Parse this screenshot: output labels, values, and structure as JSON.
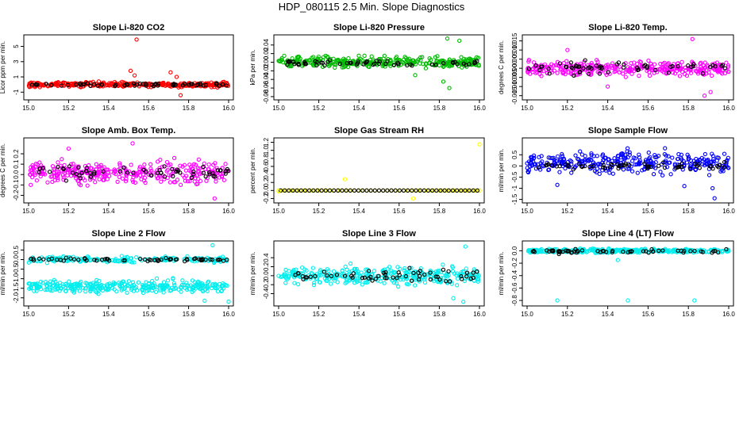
{
  "page": {
    "title": "HDP_080115  2.5 Min. Slope Diagnostics"
  },
  "chart_data": [
    {
      "type": "scatter",
      "title": "Slope Li-820 CO2",
      "ylabel": "Licor ppm per min.",
      "color": "#ff0000",
      "xlim": [
        15.0,
        16.0
      ],
      "ylim": [
        -1.7,
        6.2
      ],
      "xticks": [
        15.0,
        15.2,
        15.4,
        15.6,
        15.8,
        16.0
      ],
      "xtick_labels": [
        "15.0",
        "15.2",
        "15.4",
        "15.6",
        "15.8",
        "16.0"
      ],
      "yticks": [
        -1,
        1,
        3,
        5
      ],
      "ytick_labels": [
        "-1",
        "1",
        "3",
        "5"
      ],
      "main": {
        "center": 0.0,
        "spread": 0.3
      },
      "black": {
        "center": 0.0,
        "spread": 0.2
      },
      "outliers": [
        [
          15.54,
          5.9
        ],
        [
          15.51,
          1.8
        ],
        [
          15.53,
          1.2
        ],
        [
          15.71,
          1.6
        ],
        [
          15.74,
          1.0
        ],
        [
          15.76,
          -1.4
        ]
      ]
    },
    {
      "type": "scatter",
      "title": "Slope Li-820 Pressure",
      "ylabel": "kPa per min.",
      "color": "#00bb00",
      "xlim": [
        15.0,
        16.0
      ],
      "ylim": [
        -0.082,
        0.058
      ],
      "xticks": [
        15.0,
        15.2,
        15.4,
        15.6,
        15.8,
        16.0
      ],
      "xtick_labels": [
        "15.0",
        "15.2",
        "15.4",
        "15.6",
        "15.8",
        "16.0"
      ],
      "yticks": [
        -0.08,
        -0.06,
        -0.04,
        -0.02,
        0.0,
        0.02,
        0.04
      ],
      "ytick_labels": [
        "-0.08",
        "-0.06",
        "-0.04",
        "-0.02",
        "0.00",
        "0.02",
        "0.04"
      ],
      "main": {
        "center": 0.0,
        "spread": 0.012
      },
      "black": {
        "center": -0.002,
        "spread": 0.006
      },
      "outliers": [
        [
          15.84,
          0.055
        ],
        [
          15.9,
          0.05
        ],
        [
          15.85,
          -0.06
        ],
        [
          15.82,
          -0.045
        ],
        [
          15.68,
          -0.03
        ]
      ]
    },
    {
      "type": "scatter",
      "title": "Slope Li-820 Temp.",
      "ylabel": "degrees C per min.",
      "color": "#ff00ff",
      "xlim": [
        15.0,
        16.0
      ],
      "ylim": [
        -0.016,
        0.017
      ],
      "xticks": [
        15.0,
        15.2,
        15.4,
        15.6,
        15.8,
        16.0
      ],
      "xtick_labels": [
        "15.0",
        "15.2",
        "15.4",
        "15.6",
        "15.8",
        "16.0"
      ],
      "yticks": [
        -0.015,
        -0.01,
        -0.005,
        0.0,
        0.005,
        0.01,
        0.015
      ],
      "ytick_labels": [
        "-0.015",
        "-0.010",
        "-0.005",
        "0.000",
        "0.005",
        "0.010",
        "0.015"
      ],
      "main": {
        "center": 0.0,
        "spread": 0.004
      },
      "black": {
        "center": 0.0,
        "spread": 0.003
      },
      "outliers": [
        [
          15.82,
          0.016
        ],
        [
          15.91,
          -0.013
        ],
        [
          15.88,
          -0.015
        ],
        [
          15.4,
          -0.01
        ],
        [
          15.2,
          0.01
        ]
      ]
    },
    {
      "type": "scatter",
      "title": "Slope Amb. Box Temp.",
      "ylabel": "degrees C per min.",
      "color": "#ff00ff",
      "xlim": [
        15.0,
        16.0
      ],
      "ylim": [
        -0.25,
        0.33
      ],
      "xticks": [
        15.0,
        15.2,
        15.4,
        15.6,
        15.8,
        16.0
      ],
      "xtick_labels": [
        "15.0",
        "15.2",
        "15.4",
        "15.6",
        "15.8",
        "16.0"
      ],
      "yticks": [
        -0.2,
        -0.1,
        0.0,
        0.1,
        0.2
      ],
      "ytick_labels": [
        "-0.2",
        "-0.1",
        "0.0",
        "0.1",
        "0.2"
      ],
      "main": {
        "center": 0.02,
        "spread": 0.1
      },
      "black": {
        "center": 0.02,
        "spread": 0.06
      },
      "outliers": [
        [
          15.52,
          0.3
        ],
        [
          15.2,
          0.25
        ],
        [
          15.93,
          -0.23
        ]
      ]
    },
    {
      "type": "scatter",
      "title": "Slope Gas Stream RH",
      "ylabel": "percent per min.",
      "color": "#ffff00",
      "xlim": [
        15.0,
        16.0
      ],
      "ylim": [
        -0.25,
        1.25
      ],
      "xticks": [
        15.0,
        15.2,
        15.4,
        15.6,
        15.8,
        16.0
      ],
      "xtick_labels": [
        "15.0",
        "15.2",
        "15.4",
        "15.6",
        "15.8",
        "16.0"
      ],
      "yticks": [
        -0.2,
        0.0,
        0.2,
        0.4,
        0.6,
        0.8,
        1.0,
        1.2
      ],
      "ytick_labels": [
        "-0.2",
        "0.0",
        "0.2",
        "0.4",
        "0.6",
        "0.8",
        "1.0",
        "1.2"
      ],
      "main": {
        "center": 0.0,
        "spread": 0.0
      },
      "black": {
        "center": 0.0,
        "spread": 0.0
      },
      "outliers": [
        [
          16.0,
          1.15
        ],
        [
          15.33,
          0.28
        ],
        [
          15.67,
          -0.2
        ],
        [
          15.0,
          -0.02
        ]
      ]
    },
    {
      "type": "scatter",
      "title": "Slope Sample Flow",
      "ylabel": "ml/min per min.",
      "color": "#0000ff",
      "xlim": [
        15.0,
        16.0
      ],
      "ylim": [
        -1.55,
        1.15
      ],
      "xticks": [
        15.0,
        15.2,
        15.4,
        15.6,
        15.8,
        16.0
      ],
      "xtick_labels": [
        "15.0",
        "15.2",
        "15.4",
        "15.6",
        "15.8",
        "16.0"
      ],
      "yticks": [
        -1.5,
        -1.0,
        -0.5,
        0.0,
        0.5
      ],
      "ytick_labels": [
        "-1.5",
        "-1",
        "-0.5",
        "0",
        "0.5"
      ],
      "main": {
        "center": 0.15,
        "spread": 0.45
      },
      "black": {
        "center": 0.0,
        "spread": 0.15
      },
      "outliers": [
        [
          15.93,
          -1.45
        ],
        [
          15.78,
          -0.9
        ],
        [
          15.15,
          -0.85
        ],
        [
          15.92,
          -1.0
        ]
      ]
    },
    {
      "type": "scatter",
      "title": "Slope Line 2 Flow",
      "ylabel": "ml/min per min.",
      "color": "#00eeee",
      "xlim": [
        15.0,
        16.0
      ],
      "ylim": [
        -2.3,
        0.85
      ],
      "xticks": [
        15.0,
        15.2,
        15.4,
        15.6,
        15.8,
        16.0
      ],
      "xtick_labels": [
        "15.0",
        "15.2",
        "15.4",
        "15.6",
        "15.8",
        "16.0"
      ],
      "yticks": [
        -2.0,
        -1.5,
        -1.0,
        -0.5,
        0.0,
        0.5
      ],
      "ytick_labels": [
        "-2.0",
        "-1.5",
        "-1.0",
        "-0.5",
        "0.0",
        "0.5"
      ],
      "main": {
        "center": -1.4,
        "spread": 0.3
      },
      "upper": {
        "center": 0.0,
        "spread": 0.15
      },
      "black": {
        "center": 0.0,
        "spread": 0.08
      },
      "outliers": [
        [
          15.92,
          0.75
        ],
        [
          16.0,
          -2.2
        ],
        [
          15.88,
          -2.15
        ]
      ]
    },
    {
      "type": "scatter",
      "title": "Slope Line 3 Flow",
      "ylabel": "ml/min per min.",
      "color": "#00eeee",
      "xlim": [
        15.0,
        16.0
      ],
      "ylim": [
        -0.62,
        0.72
      ],
      "xticks": [
        15.0,
        15.2,
        15.4,
        15.6,
        15.8,
        16.0
      ],
      "xtick_labels": [
        "15.0",
        "15.2",
        "15.4",
        "15.6",
        "15.8",
        "16.0"
      ],
      "yticks": [
        -0.4,
        -0.2,
        0.0,
        0.2,
        0.4
      ],
      "ytick_labels": [
        "-0.4",
        "-0.2",
        "0.0",
        "0.2",
        "0.4"
      ],
      "main": {
        "center": 0.0,
        "spread": 0.18
      },
      "black": {
        "center": 0.0,
        "spread": 0.15
      },
      "outliers": [
        [
          15.93,
          0.65
        ],
        [
          15.92,
          -0.58
        ],
        [
          15.87,
          -0.5
        ]
      ]
    },
    {
      "type": "scatter",
      "title": "Slope Line 4 (LT) Flow",
      "ylabel": "ml/min per min.",
      "color": "#00eeee",
      "xlim": [
        15.0,
        16.0
      ],
      "ylim": [
        -0.85,
        0.12
      ],
      "xticks": [
        15.0,
        15.2,
        15.4,
        15.6,
        15.8,
        16.0
      ],
      "xtick_labels": [
        "15.0",
        "15.2",
        "15.4",
        "15.6",
        "15.8",
        "16.0"
      ],
      "yticks": [
        -0.8,
        -0.6,
        -0.4,
        -0.2,
        0.0
      ],
      "ytick_labels": [
        "-0.8",
        "-0.6",
        "-0.4",
        "-0.2",
        "0.0"
      ],
      "main": {
        "center": 0.0,
        "spread": 0.03
      },
      "black": {
        "center": -0.01,
        "spread": 0.03
      },
      "outliers": [
        [
          15.15,
          -0.8
        ],
        [
          15.5,
          -0.8
        ],
        [
          15.83,
          -0.8
        ],
        [
          15.45,
          -0.15
        ]
      ]
    }
  ]
}
